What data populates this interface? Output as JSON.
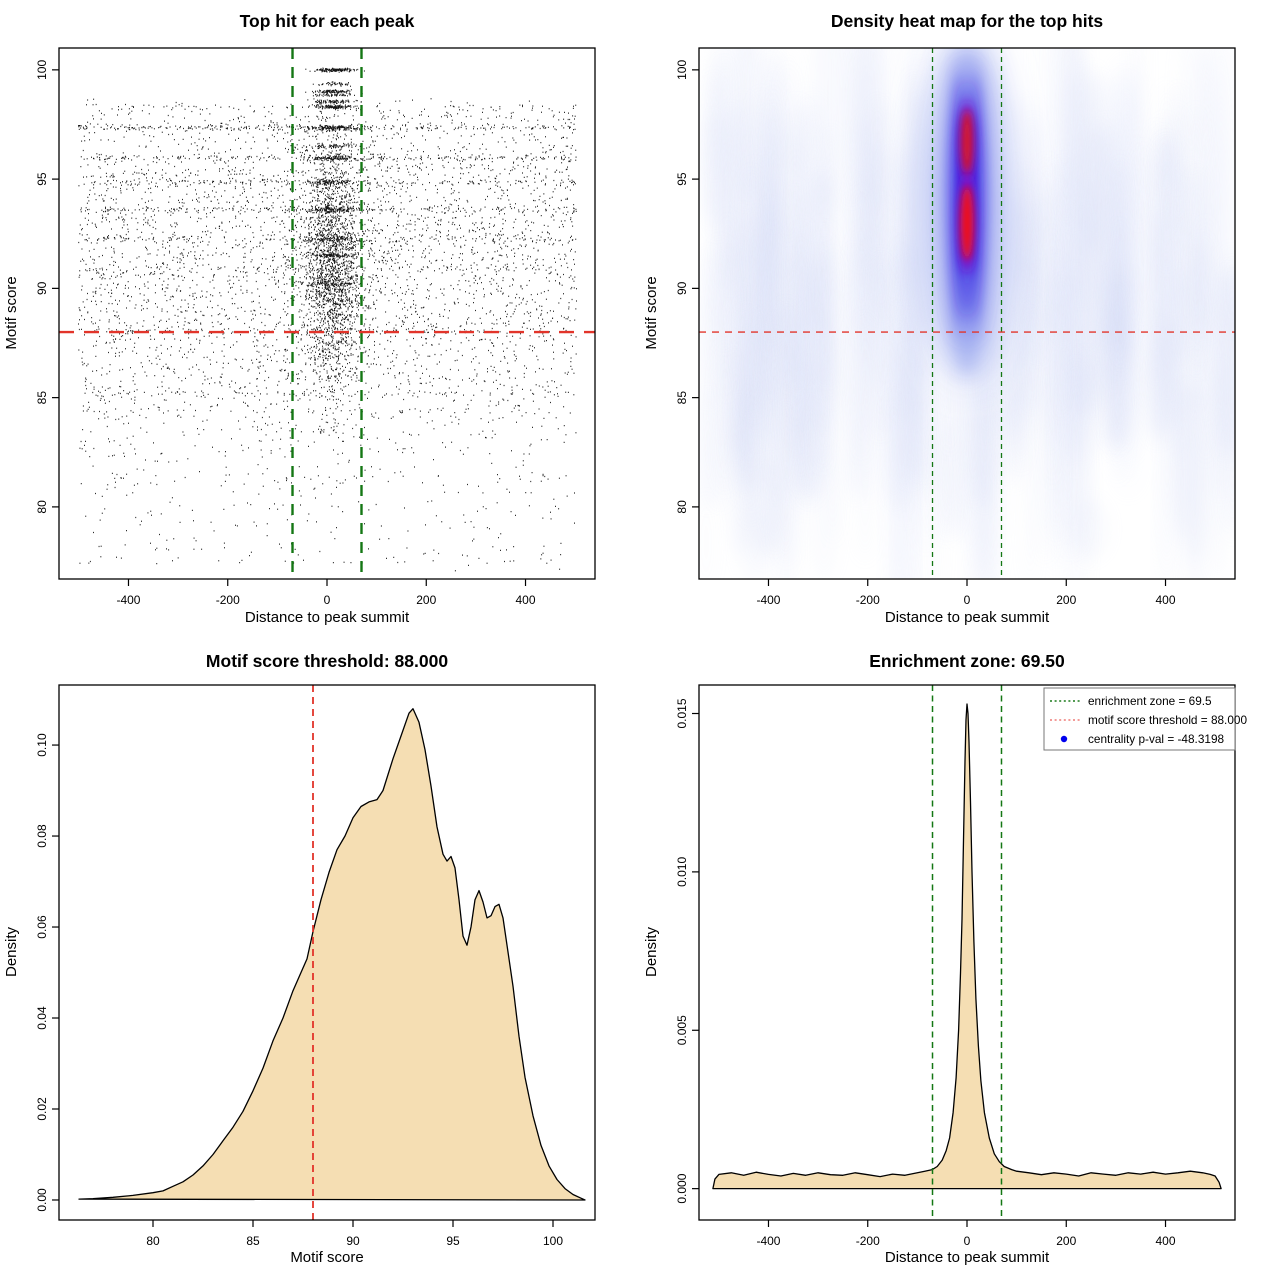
{
  "page": {
    "background": "#ffffff"
  },
  "colors": {
    "threshold_red": "#e2342a",
    "zone_green": "#147714",
    "density_fill": "#f5deb3",
    "density_stroke": "#000000",
    "point_black": "#000000",
    "legend_blue": "#0000ee",
    "legend_red_swatch": "#ef7a76",
    "heat_palette": [
      "#ffffff",
      "#dfe4fa",
      "#aab6f2",
      "#5a52e8",
      "#2713e2",
      "#9612c4",
      "#f50f0f"
    ]
  },
  "chart_data": [
    {
      "type": "scatter",
      "title": "Top hit for each peak",
      "xlabel": "Distance to peak summit",
      "ylabel": "Motif score",
      "xlim": [
        -540,
        540
      ],
      "ylim": [
        76.7,
        101.0
      ],
      "x_ticks": [
        -400,
        -200,
        0,
        200,
        400
      ],
      "x_tick_labels": [
        "-400",
        "-200",
        "0",
        "200",
        "400"
      ],
      "y_ticks": [
        80,
        85,
        90,
        95,
        100
      ],
      "y_tick_labels": [
        "80",
        "85",
        "90",
        "95",
        "100"
      ],
      "hline": {
        "y": 88,
        "meaning": "motif score threshold"
      },
      "vlines": {
        "x": [
          -69.5,
          69.5
        ],
        "meaning": "enrichment zone"
      },
      "points_summary": {
        "n_background": 5000,
        "n_central_cluster": 3600,
        "n_low_tail": 160,
        "central_cluster_x_mean": 9,
        "central_cluster_x_sd": 25,
        "stripe_scores": [
          97.35,
          95.95,
          94.85,
          93.6,
          92.25,
          90.9,
          88.05,
          98.3
        ],
        "top_row_scores": [
          100,
          99.35,
          99.0,
          98.85,
          98.55,
          98.3
        ],
        "score_range": [
          77.4,
          100.2
        ]
      }
    },
    {
      "type": "heatmap",
      "title": "Density heat map for the top hits",
      "xlabel": "Distance to peak summit",
      "ylabel": "Motif score",
      "xlim": [
        -540,
        540
      ],
      "ylim": [
        76.7,
        101.0
      ],
      "x_ticks": [
        -400,
        -200,
        0,
        200,
        400
      ],
      "x_tick_labels": [
        "-400",
        "-200",
        "0",
        "200",
        "400"
      ],
      "y_ticks": [
        80,
        85,
        90,
        95,
        100
      ],
      "y_tick_labels": [
        "80",
        "85",
        "90",
        "95",
        "100"
      ],
      "hline": {
        "y": 88,
        "meaning": "motif score threshold"
      },
      "vlines": {
        "x": [
          -69.5,
          69.5
        ],
        "meaning": "enrichment zone"
      },
      "hotspots": [
        {
          "x": 0,
          "y": 96.7,
          "intensity": "high"
        },
        {
          "x": 0,
          "y": 93.0,
          "intensity": "highest"
        }
      ],
      "blob": {
        "x_center": 0,
        "y_span": [
          86.5,
          99.8
        ],
        "x_halfwidth": 35
      }
    },
    {
      "type": "area",
      "title": "Motif score threshold: 88.000",
      "xlabel": "Motif score",
      "ylabel": "Density",
      "xlim": [
        75.3,
        102.1
      ],
      "ylim": [
        -0.0044,
        0.1132
      ],
      "x_ticks": [
        80,
        85,
        90,
        95,
        100
      ],
      "x_tick_labels": [
        "80",
        "85",
        "90",
        "95",
        "100"
      ],
      "y_ticks": [
        0,
        0.02,
        0.04,
        0.06,
        0.08,
        0.1
      ],
      "y_tick_labels": [
        "0.00",
        "0.02",
        "0.04",
        "0.06",
        "0.08",
        "0.10"
      ],
      "vline": {
        "x": 88,
        "meaning": "motif score threshold"
      },
      "curve": [
        [
          76.3,
          0.0002
        ],
        [
          77,
          0.0003
        ],
        [
          78,
          0.0006
        ],
        [
          79,
          0.001
        ],
        [
          80,
          0.0016
        ],
        [
          80.5,
          0.002
        ],
        [
          81,
          0.003
        ],
        [
          81.5,
          0.004
        ],
        [
          82,
          0.0055
        ],
        [
          82.5,
          0.0075
        ],
        [
          83,
          0.01
        ],
        [
          83.5,
          0.013
        ],
        [
          84,
          0.016
        ],
        [
          84.5,
          0.0195
        ],
        [
          85,
          0.024
        ],
        [
          85.5,
          0.029
        ],
        [
          86,
          0.035
        ],
        [
          86.5,
          0.04
        ],
        [
          87,
          0.046
        ],
        [
          87.4,
          0.05
        ],
        [
          87.7,
          0.053
        ],
        [
          88,
          0.059
        ],
        [
          88.4,
          0.066
        ],
        [
          88.8,
          0.072
        ],
        [
          89.2,
          0.077
        ],
        [
          89.6,
          0.08
        ],
        [
          90,
          0.084
        ],
        [
          90.4,
          0.0865
        ],
        [
          90.8,
          0.0875
        ],
        [
          91.2,
          0.088
        ],
        [
          91.5,
          0.09
        ],
        [
          92,
          0.097
        ],
        [
          92.4,
          0.102
        ],
        [
          92.8,
          0.107
        ],
        [
          93,
          0.108
        ],
        [
          93.3,
          0.105
        ],
        [
          93.6,
          0.099
        ],
        [
          93.9,
          0.091
        ],
        [
          94.2,
          0.082
        ],
        [
          94.5,
          0.076
        ],
        [
          94.7,
          0.0745
        ],
        [
          94.9,
          0.0755
        ],
        [
          95.1,
          0.073
        ],
        [
          95.3,
          0.066
        ],
        [
          95.5,
          0.058
        ],
        [
          95.7,
          0.056
        ],
        [
          95.9,
          0.06
        ],
        [
          96.1,
          0.066
        ],
        [
          96.3,
          0.068
        ],
        [
          96.5,
          0.0655
        ],
        [
          96.7,
          0.062
        ],
        [
          96.9,
          0.0625
        ],
        [
          97.1,
          0.0645
        ],
        [
          97.3,
          0.065
        ],
        [
          97.5,
          0.062
        ],
        [
          97.7,
          0.056
        ],
        [
          98,
          0.047
        ],
        [
          98.3,
          0.036
        ],
        [
          98.6,
          0.027
        ],
        [
          99,
          0.0185
        ],
        [
          99.4,
          0.012
        ],
        [
          99.8,
          0.0075
        ],
        [
          100.2,
          0.0045
        ],
        [
          100.6,
          0.0025
        ],
        [
          101,
          0.0012
        ],
        [
          101.4,
          0.0004
        ],
        [
          101.6,
          0
        ]
      ]
    },
    {
      "type": "area",
      "title": "Enrichment zone: 69.50",
      "xlabel": "Distance to peak summit",
      "ylabel": "Density",
      "xlim": [
        -540,
        540
      ],
      "ylim": [
        -0.00099,
        0.0159
      ],
      "x_ticks": [
        -400,
        -200,
        0,
        200,
        400
      ],
      "x_tick_labels": [
        "-400",
        "-200",
        "0",
        "200",
        "400"
      ],
      "y_ticks": [
        0,
        0.005,
        0.01,
        0.015
      ],
      "y_tick_labels": [
        "0.000",
        "0.005",
        "0.010",
        "0.015"
      ],
      "vlines": {
        "x": [
          -69.5,
          69.5
        ],
        "meaning": "enrichment zone"
      },
      "peak": {
        "x": 0,
        "y": 0.0153
      },
      "curve": [
        [
          -512,
          0
        ],
        [
          -508,
          0.0003
        ],
        [
          -500,
          0.00045
        ],
        [
          -475,
          0.0005
        ],
        [
          -450,
          0.00042
        ],
        [
          -425,
          0.00052
        ],
        [
          -400,
          0.00045
        ],
        [
          -375,
          0.0004
        ],
        [
          -350,
          0.00048
        ],
        [
          -325,
          0.00042
        ],
        [
          -300,
          0.0005
        ],
        [
          -275,
          0.00044
        ],
        [
          -250,
          0.00042
        ],
        [
          -225,
          0.0005
        ],
        [
          -200,
          0.00044
        ],
        [
          -175,
          0.00038
        ],
        [
          -150,
          0.00046
        ],
        [
          -125,
          0.00042
        ],
        [
          -100,
          0.0005
        ],
        [
          -85,
          0.00055
        ],
        [
          -70,
          0.0006
        ],
        [
          -60,
          0.0007
        ],
        [
          -50,
          0.0009
        ],
        [
          -42,
          0.0012
        ],
        [
          -35,
          0.0016
        ],
        [
          -28,
          0.0024
        ],
        [
          -22,
          0.0035
        ],
        [
          -17,
          0.005
        ],
        [
          -13,
          0.0068
        ],
        [
          -10,
          0.0085
        ],
        [
          -7,
          0.011
        ],
        [
          -4,
          0.0135
        ],
        [
          -2,
          0.0148
        ],
        [
          0,
          0.0153
        ],
        [
          2,
          0.015
        ],
        [
          4,
          0.0141
        ],
        [
          7,
          0.0122
        ],
        [
          10,
          0.01
        ],
        [
          14,
          0.0078
        ],
        [
          18,
          0.006
        ],
        [
          23,
          0.0045
        ],
        [
          28,
          0.0034
        ],
        [
          35,
          0.0024
        ],
        [
          45,
          0.0016
        ],
        [
          55,
          0.0011
        ],
        [
          65,
          0.00085
        ],
        [
          75,
          0.0007
        ],
        [
          90,
          0.0006
        ],
        [
          100,
          0.00055
        ],
        [
          125,
          0.0005
        ],
        [
          150,
          0.00044
        ],
        [
          175,
          0.0005
        ],
        [
          200,
          0.00046
        ],
        [
          225,
          0.0004
        ],
        [
          250,
          0.0005
        ],
        [
          275,
          0.00046
        ],
        [
          300,
          0.00042
        ],
        [
          325,
          0.0005
        ],
        [
          350,
          0.00046
        ],
        [
          375,
          0.00052
        ],
        [
          400,
          0.00046
        ],
        [
          425,
          0.0005
        ],
        [
          450,
          0.00055
        ],
        [
          475,
          0.0005
        ],
        [
          490,
          0.00045
        ],
        [
          500,
          0.0004
        ],
        [
          508,
          0.0002
        ],
        [
          512,
          0
        ]
      ],
      "legend": {
        "items": [
          {
            "label": "enrichment zone = 69.5",
            "swatch": "green-dotted-line"
          },
          {
            "label": "motif score threshold = 88.000",
            "swatch": "red-dotted-line"
          },
          {
            "label": "centrality p-val = -48.3198",
            "swatch": "blue-point"
          }
        ]
      }
    }
  ]
}
